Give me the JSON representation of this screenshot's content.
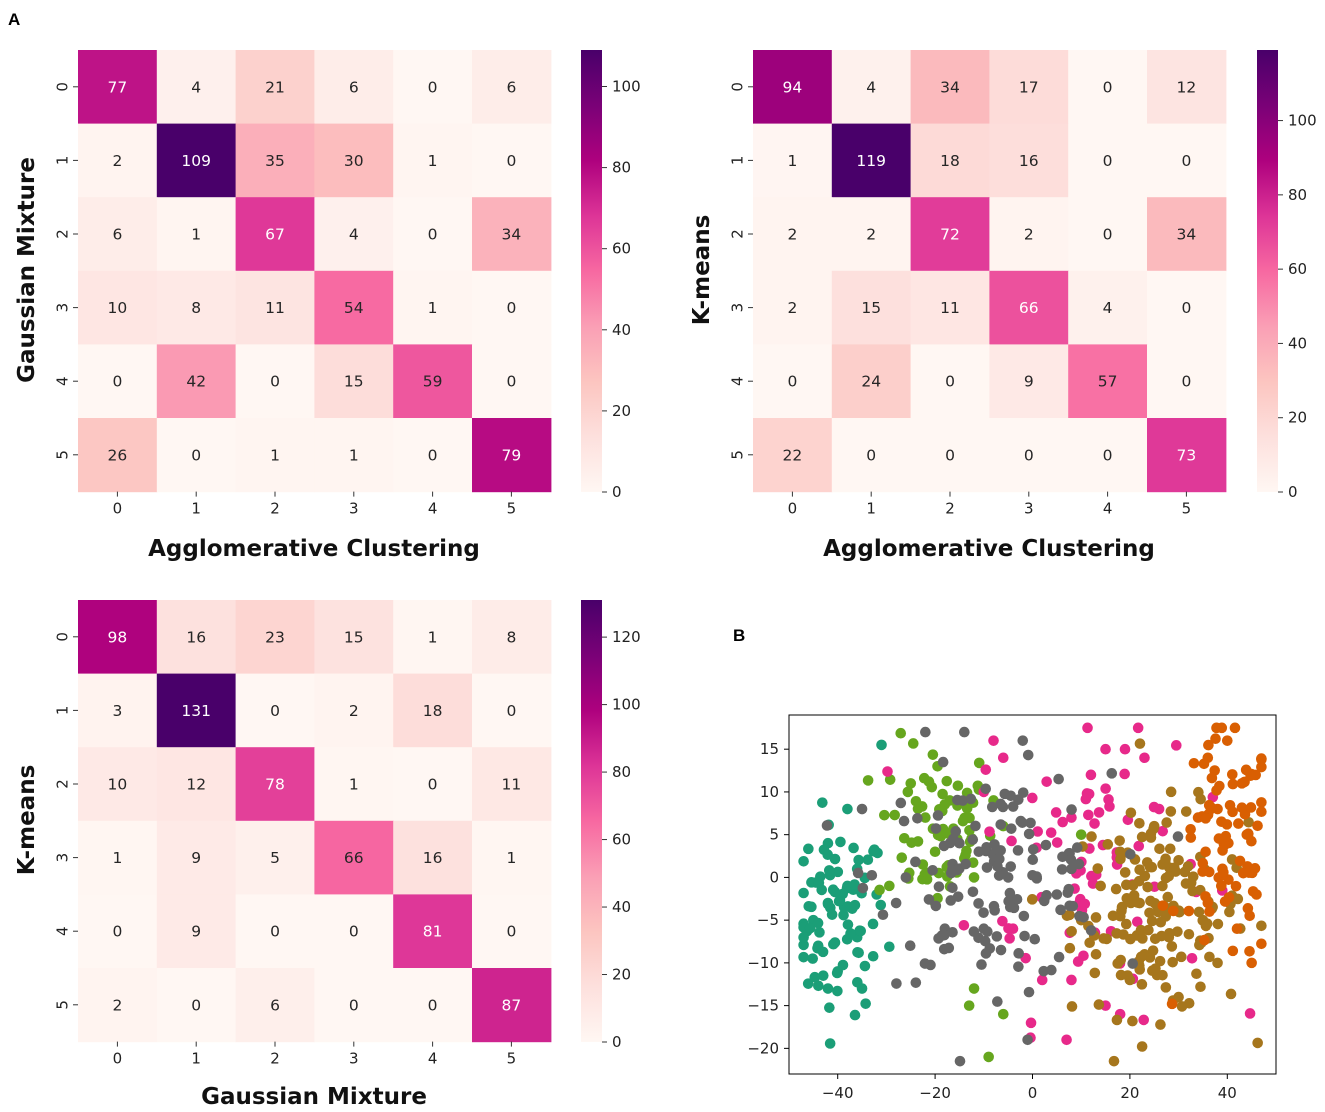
{
  "panel_labels": {
    "a": "A",
    "b": "B"
  },
  "chart_data": [
    {
      "type": "heatmap",
      "title": "",
      "xlabel": "Agglomerative Clustering",
      "ylabel": "Gaussian Mixture",
      "x_categories": [
        "0",
        "1",
        "2",
        "3",
        "4",
        "5"
      ],
      "y_categories": [
        "0",
        "1",
        "2",
        "3",
        "4",
        "5"
      ],
      "values": [
        [
          77,
          4,
          21,
          6,
          0,
          6
        ],
        [
          2,
          109,
          35,
          30,
          1,
          0
        ],
        [
          6,
          1,
          67,
          4,
          0,
          34
        ],
        [
          10,
          8,
          11,
          54,
          1,
          0
        ],
        [
          0,
          42,
          0,
          15,
          59,
          0
        ],
        [
          26,
          0,
          1,
          1,
          0,
          79
        ]
      ],
      "colorbar": {
        "min": 0,
        "max": 109,
        "ticks": [
          0,
          20,
          40,
          60,
          80,
          100
        ]
      },
      "colormap": "RdPu"
    },
    {
      "type": "heatmap",
      "title": "",
      "xlabel": "Agglomerative Clustering",
      "ylabel": "K-means",
      "x_categories": [
        "0",
        "1",
        "2",
        "3",
        "4",
        "5"
      ],
      "y_categories": [
        "0",
        "1",
        "2",
        "3",
        "4",
        "5"
      ],
      "values": [
        [
          94,
          4,
          34,
          17,
          0,
          12
        ],
        [
          1,
          119,
          18,
          16,
          0,
          0
        ],
        [
          2,
          2,
          72,
          2,
          0,
          34
        ],
        [
          2,
          15,
          11,
          66,
          4,
          0
        ],
        [
          0,
          24,
          0,
          9,
          57,
          0
        ],
        [
          22,
          0,
          0,
          0,
          0,
          73
        ]
      ],
      "colorbar": {
        "min": 0,
        "max": 119,
        "ticks": [
          0,
          20,
          40,
          60,
          80,
          100
        ]
      },
      "colormap": "RdPu"
    },
    {
      "type": "heatmap",
      "title": "",
      "xlabel": "Gaussian Mixture",
      "ylabel": "K-means",
      "x_categories": [
        "0",
        "1",
        "2",
        "3",
        "4",
        "5"
      ],
      "y_categories": [
        "0",
        "1",
        "2",
        "3",
        "4",
        "5"
      ],
      "values": [
        [
          98,
          16,
          23,
          15,
          1,
          8
        ],
        [
          3,
          131,
          0,
          2,
          18,
          0
        ],
        [
          10,
          12,
          78,
          1,
          0,
          11
        ],
        [
          1,
          9,
          5,
          66,
          16,
          1
        ],
        [
          0,
          9,
          0,
          0,
          81,
          0
        ],
        [
          2,
          0,
          6,
          0,
          0,
          87
        ]
      ],
      "colorbar": {
        "min": 0,
        "max": 131,
        "ticks": [
          0,
          20,
          40,
          60,
          80,
          100,
          120
        ]
      },
      "colormap": "RdPu"
    },
    {
      "type": "scatter",
      "title": "",
      "xlabel": "",
      "ylabel": "",
      "xlim": [
        -50,
        50
      ],
      "ylim": [
        -23,
        19
      ],
      "xticks": [
        -40,
        -20,
        0,
        20,
        40
      ],
      "yticks": [
        -20,
        -15,
        -10,
        -5,
        0,
        5,
        10,
        15
      ],
      "series": [
        {
          "name": "teal cluster",
          "color": "#1b9e77",
          "center": [
            -40,
            -5
          ],
          "spread": [
            5,
            5.5
          ],
          "count": 95,
          "points": [
            [
              -45,
              -5
            ],
            [
              -42,
              -3
            ],
            [
              -38,
              -1
            ],
            [
              -36,
              -7
            ],
            [
              -40,
              -11
            ],
            [
              -44,
              -8
            ],
            [
              -32,
              -2
            ],
            [
              -42,
              4
            ],
            [
              -38,
              8
            ],
            [
              -31,
              15.5
            ],
            [
              -35,
              -13
            ],
            [
              -42,
              -13
            ],
            [
              -36,
              1
            ]
          ]
        },
        {
          "name": "dark gray cluster",
          "color": "#666666",
          "center": [
            -8,
            0
          ],
          "spread": [
            12,
            6
          ],
          "count": 150,
          "points": [
            [
              -22,
              17
            ],
            [
              -14,
              17
            ],
            [
              -2,
              16
            ],
            [
              -35,
              8
            ],
            [
              -26,
              0
            ],
            [
              -15,
              4
            ],
            [
              -5,
              0
            ],
            [
              5,
              -2
            ],
            [
              -10,
              -6
            ],
            [
              -18,
              -6
            ],
            [
              -28,
              -3
            ],
            [
              8,
              1
            ],
            [
              -1,
              -19
            ]
          ]
        },
        {
          "name": "lime cluster",
          "color": "#66a61e",
          "center": [
            -20,
            6
          ],
          "spread": [
            6,
            5
          ],
          "count": 80,
          "points": [
            [
              -25,
              11
            ],
            [
              -22,
              7
            ],
            [
              -17,
              9
            ],
            [
              -20,
              3
            ],
            [
              -12,
              0
            ],
            [
              -8,
              9
            ],
            [
              -20,
              -3
            ],
            [
              -6,
              6
            ],
            [
              10,
              5
            ],
            [
              -6,
              -16
            ],
            [
              -13,
              -15
            ],
            [
              -9,
              -21
            ],
            [
              -12,
              -13
            ]
          ]
        },
        {
          "name": "magenta cluster",
          "color": "#e7298a",
          "center": [
            12,
            2
          ],
          "spread": [
            12,
            9
          ],
          "count": 85,
          "points": [
            [
              -8,
              16
            ],
            [
              -6,
              14
            ],
            [
              15,
              15
            ],
            [
              19,
              15
            ],
            [
              23,
              14
            ],
            [
              12,
              12
            ],
            [
              26,
              8
            ],
            [
              8,
              7
            ],
            [
              -10,
              10
            ],
            [
              -4,
              -6
            ],
            [
              2,
              -12
            ],
            [
              8,
              -12
            ],
            [
              15,
              -15
            ],
            [
              7,
              -19
            ],
            [
              18,
              -16
            ]
          ]
        },
        {
          "name": "olive-brown cluster",
          "color": "#a6761d",
          "center": [
            26,
            -4
          ],
          "spread": [
            9,
            6
          ],
          "count": 170,
          "points": [
            [
              18,
              3
            ],
            [
              25,
              6
            ],
            [
              30,
              2
            ],
            [
              22,
              -3
            ],
            [
              28,
              -7
            ],
            [
              35,
              -5
            ],
            [
              20,
              -12
            ],
            [
              30,
              -14
            ],
            [
              23,
              -9
            ],
            [
              38,
              -10
            ],
            [
              14,
              -1
            ],
            [
              10,
              -5
            ]
          ]
        },
        {
          "name": "orange cluster",
          "color": "#d95f02",
          "center": [
            40,
            3
          ],
          "spread": [
            5,
            7
          ],
          "count": 90,
          "points": [
            [
              36,
              14
            ],
            [
              40,
              16
            ],
            [
              43,
              11
            ],
            [
              38,
              8
            ],
            [
              44,
              5
            ],
            [
              39,
              1
            ],
            [
              46,
              -2
            ],
            [
              42,
              -6
            ],
            [
              45,
              -10
            ],
            [
              36,
              -3
            ],
            [
              34,
              7
            ]
          ]
        }
      ]
    }
  ]
}
